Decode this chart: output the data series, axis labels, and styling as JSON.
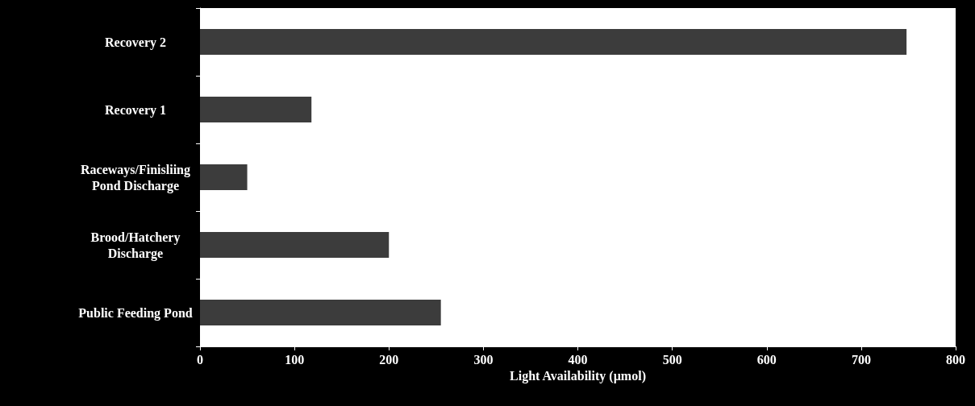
{
  "chart_data": {
    "type": "bar",
    "orientation": "horizontal",
    "xlabel": "Light Availability (µmol)",
    "categories": [
      "Recovery 2",
      "Recovery 1",
      "Raceways/Finisliing\nPond Discharge",
      "Brood/Hatchery\nDischarge",
      "Public Feeding Pond"
    ],
    "values": [
      748,
      118,
      50,
      200,
      255
    ],
    "color": "#3c3c3c",
    "xlim": [
      0,
      800
    ],
    "xticks": [
      0,
      100,
      200,
      300,
      400,
      500,
      600,
      700,
      800
    ],
    "grid": false
  }
}
